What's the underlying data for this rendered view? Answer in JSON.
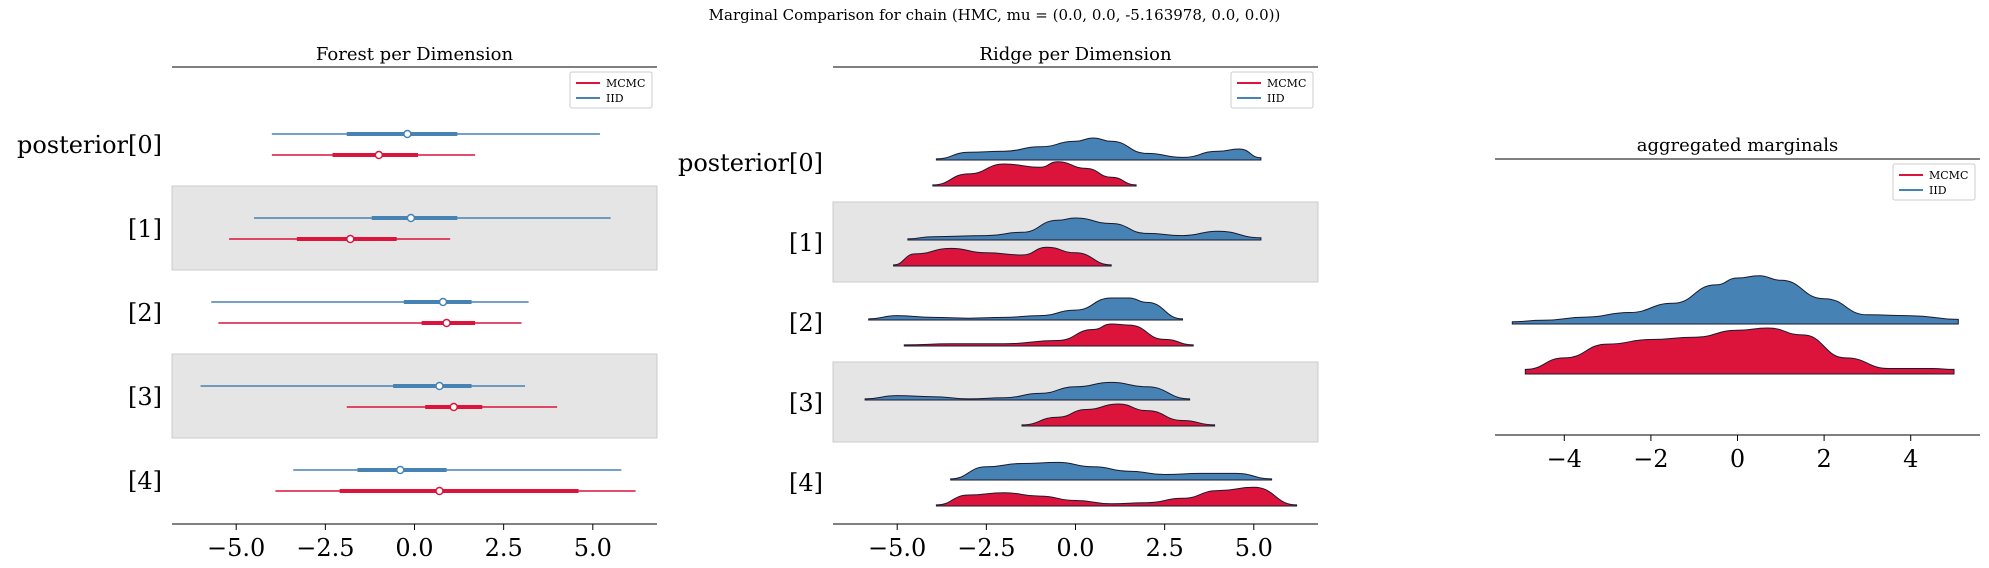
{
  "suptitle": "Marginal Comparison for chain (HMC, mu = (0.0, 0.0, -5.163978, 0.0, 0.0))",
  "colors": {
    "mcmc": "#DC143C",
    "iid": "#4682B4",
    "band": "#e5e5e5"
  },
  "chart_data": [
    {
      "type": "forest",
      "title": "Forest per Dimension",
      "xlim": [
        -6.8,
        6.8
      ],
      "xticks": [
        -5.0,
        -2.5,
        0.0,
        2.5,
        5.0
      ],
      "xtick_labels": [
        "−5.0",
        "−2.5",
        "0.0",
        "2.5",
        "5.0"
      ],
      "legend": {
        "position": "upper right",
        "entries": [
          "MCMC",
          "IID"
        ]
      },
      "rows": [
        {
          "label": "posterior[0]",
          "iid": {
            "hdi": [
              -4.0,
              5.2
            ],
            "iqr": [
              -1.9,
              1.2
            ],
            "median": -0.2
          },
          "mcmc": {
            "hdi": [
              -4.0,
              1.7
            ],
            "iqr": [
              -2.3,
              0.1
            ],
            "median": -1.0
          }
        },
        {
          "label": "[1]",
          "iid": {
            "hdi": [
              -4.5,
              5.5
            ],
            "iqr": [
              -1.2,
              1.2
            ],
            "median": -0.1
          },
          "mcmc": {
            "hdi": [
              -5.2,
              1.0
            ],
            "iqr": [
              -3.3,
              -0.5
            ],
            "median": -1.8
          }
        },
        {
          "label": "[2]",
          "iid": {
            "hdi": [
              -5.7,
              3.2
            ],
            "iqr": [
              -0.3,
              1.6
            ],
            "median": 0.8
          },
          "mcmc": {
            "hdi": [
              -5.5,
              3.0
            ],
            "iqr": [
              0.2,
              1.7
            ],
            "median": 0.9
          }
        },
        {
          "label": "[3]",
          "iid": {
            "hdi": [
              -6.0,
              3.1
            ],
            "iqr": [
              -0.6,
              1.6
            ],
            "median": 0.7
          },
          "mcmc": {
            "hdi": [
              -1.9,
              4.0
            ],
            "iqr": [
              0.3,
              1.9
            ],
            "median": 1.1
          }
        },
        {
          "label": "[4]",
          "iid": {
            "hdi": [
              -3.4,
              5.8
            ],
            "iqr": [
              -1.6,
              0.9
            ],
            "median": -0.4
          },
          "mcmc": {
            "hdi": [
              -3.9,
              6.2
            ],
            "iqr": [
              -2.1,
              4.6
            ],
            "median": 0.7
          }
        }
      ]
    },
    {
      "type": "ridge",
      "title": "Ridge per Dimension",
      "xlim": [
        -6.8,
        6.8
      ],
      "xticks": [
        -5.0,
        -2.5,
        0.0,
        2.5,
        5.0
      ],
      "xtick_labels": [
        "−5.0",
        "−2.5",
        "0.0",
        "2.5",
        "5.0"
      ],
      "legend": {
        "position": "upper right",
        "entries": [
          "MCMC",
          "IID"
        ]
      },
      "rows": [
        {
          "label": "posterior[0]",
          "iid": {
            "x": [
              -3.9,
              -3.0,
              -2.0,
              -1.0,
              0.0,
              0.5,
              1.0,
              2.0,
              3.0,
              4.0,
              4.6,
              5.2
            ],
            "y": [
              0.05,
              0.35,
              0.4,
              0.6,
              0.85,
              1.0,
              0.85,
              0.3,
              0.12,
              0.4,
              0.5,
              0.1
            ]
          },
          "mcmc": {
            "x": [
              -4.0,
              -3.0,
              -2.0,
              -1.0,
              -0.5,
              0.3,
              1.0,
              1.7
            ],
            "y": [
              0.05,
              0.55,
              1.0,
              0.85,
              1.1,
              0.8,
              0.4,
              0.05
            ]
          }
        },
        {
          "label": "[1]",
          "iid": {
            "x": [
              -4.7,
              -4.0,
              -2.5,
              -1.5,
              -0.5,
              0.0,
              1.0,
              2.0,
              3.0,
              4.0,
              5.2
            ],
            "y": [
              0.05,
              0.15,
              0.2,
              0.35,
              0.9,
              1.0,
              0.75,
              0.3,
              0.2,
              0.4,
              0.1
            ]
          },
          "mcmc": {
            "x": [
              -5.1,
              -4.5,
              -3.5,
              -2.5,
              -1.5,
              -0.8,
              0.0,
              1.0
            ],
            "y": [
              0.05,
              0.55,
              0.8,
              0.6,
              0.5,
              0.85,
              0.6,
              0.05
            ]
          }
        },
        {
          "label": "[2]",
          "iid": {
            "x": [
              -5.8,
              -5.0,
              -4.0,
              -3.0,
              -2.0,
              -1.0,
              0.0,
              1.0,
              1.5,
              2.0,
              3.0
            ],
            "y": [
              0.05,
              0.2,
              0.12,
              0.08,
              0.12,
              0.2,
              0.45,
              1.0,
              1.0,
              0.8,
              0.05
            ]
          },
          "mcmc": {
            "x": [
              -4.8,
              -3.5,
              -2.0,
              -0.5,
              0.5,
              1.0,
              1.5,
              2.5,
              3.3
            ],
            "y": [
              0.05,
              0.1,
              0.1,
              0.25,
              0.75,
              1.0,
              0.95,
              0.3,
              0.05
            ]
          }
        },
        {
          "label": "[3]",
          "iid": {
            "x": [
              -5.9,
              -5.0,
              -4.0,
              -3.0,
              -2.0,
              -1.0,
              0.0,
              1.0,
              2.0,
              3.2
            ],
            "y": [
              0.05,
              0.2,
              0.15,
              0.05,
              0.1,
              0.3,
              0.6,
              0.8,
              0.6,
              0.05
            ]
          },
          "mcmc": {
            "x": [
              -1.5,
              -0.5,
              0.3,
              1.2,
              2.0,
              3.0,
              3.9
            ],
            "y": [
              0.05,
              0.4,
              0.75,
              1.0,
              0.7,
              0.25,
              0.05
            ]
          }
        },
        {
          "label": "[4]",
          "iid": {
            "x": [
              -3.5,
              -2.5,
              -1.5,
              -0.5,
              0.5,
              1.5,
              2.5,
              3.5,
              4.5,
              5.5
            ],
            "y": [
              0.05,
              0.6,
              0.75,
              0.8,
              0.6,
              0.4,
              0.25,
              0.3,
              0.3,
              0.05
            ]
          },
          "mcmc": {
            "x": [
              -3.9,
              -3.0,
              -2.0,
              -1.0,
              0.0,
              1.0,
              2.0,
              3.0,
              4.0,
              5.0,
              6.2
            ],
            "y": [
              0.05,
              0.5,
              0.6,
              0.45,
              0.25,
              0.1,
              0.15,
              0.35,
              0.7,
              0.85,
              0.05
            ]
          }
        }
      ]
    },
    {
      "type": "ridge",
      "title": "aggregated marginals",
      "xlim": [
        -5.6,
        5.6
      ],
      "xticks": [
        -4,
        -2,
        0,
        2,
        4
      ],
      "xtick_labels": [
        "−4",
        "−2",
        "0",
        "2",
        "4"
      ],
      "legend": {
        "position": "upper right",
        "entries": [
          "MCMC",
          "IID"
        ]
      },
      "rows": [
        {
          "label": "",
          "iid": {
            "x": [
              -5.2,
              -4.5,
              -3.5,
              -2.5,
              -1.5,
              -0.5,
              0.0,
              0.5,
              1.0,
              2.0,
              3.0,
              4.0,
              5.1
            ],
            "y": [
              0.05,
              0.08,
              0.15,
              0.25,
              0.45,
              0.85,
              1.0,
              1.05,
              0.95,
              0.55,
              0.2,
              0.18,
              0.1
            ]
          },
          "mcmc": {
            "x": [
              -4.9,
              -4.0,
              -3.0,
              -2.0,
              -1.0,
              0.0,
              0.7,
              1.5,
              2.5,
              3.5,
              4.5,
              5.0
            ],
            "y": [
              0.1,
              0.35,
              0.65,
              0.75,
              0.8,
              0.95,
              1.0,
              0.85,
              0.35,
              0.12,
              0.12,
              0.1
            ]
          }
        }
      ]
    }
  ]
}
